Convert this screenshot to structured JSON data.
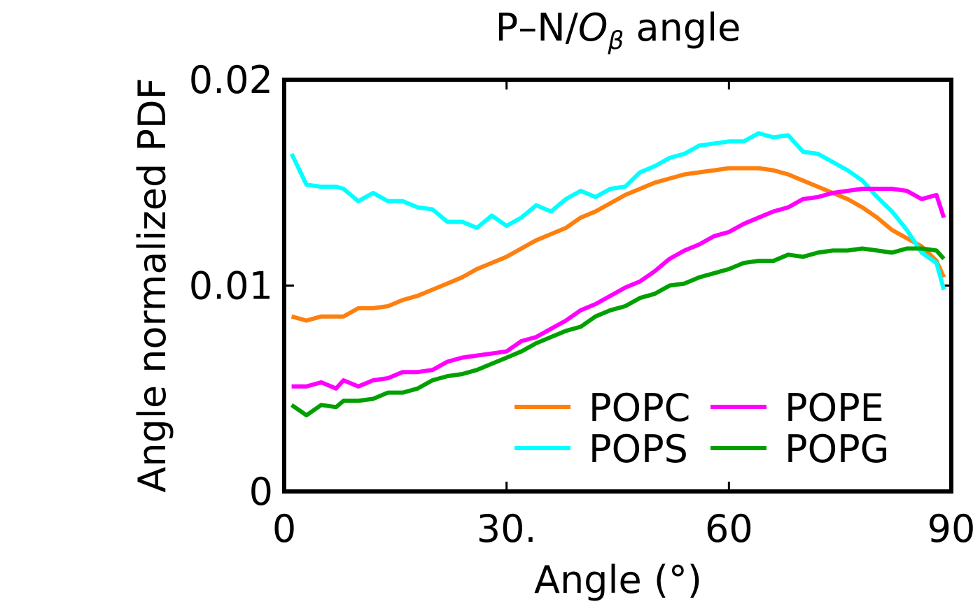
{
  "chart_data": {
    "type": "line",
    "title_main": "P–N/",
    "title_italic": "O",
    "title_sub": "β",
    "title_tail": " angle",
    "xlabel": "Angle (°)",
    "ylabel": "Angle normalized PDF",
    "xlim": [
      0,
      90
    ],
    "ylim": [
      0,
      0.02
    ],
    "xticks": [
      0,
      30,
      60,
      90
    ],
    "xtick_labels": [
      "0",
      "30.",
      "60",
      "90"
    ],
    "yticks": [
      0,
      0.01,
      0.02
    ],
    "ytick_labels": [
      "0",
      "0.01",
      "0.02"
    ],
    "grid": false,
    "legend_position": "lower-right",
    "x": [
      1,
      3,
      5,
      7,
      8,
      10,
      12,
      14,
      16,
      18,
      20,
      22,
      24,
      26,
      28,
      30,
      32,
      34,
      36,
      38,
      40,
      42,
      44,
      46,
      48,
      50,
      52,
      54,
      56,
      58,
      60,
      62,
      64,
      66,
      68,
      70,
      72,
      74,
      76,
      78,
      80,
      82,
      84,
      86,
      88,
      89
    ],
    "series": [
      {
        "name": "POPC",
        "color": "#ff7f0e",
        "values": [
          0.0085,
          0.0083,
          0.0085,
          0.0085,
          0.0085,
          0.0089,
          0.0089,
          0.009,
          0.0093,
          0.0095,
          0.0098,
          0.0101,
          0.0104,
          0.0108,
          0.0111,
          0.0114,
          0.0118,
          0.0122,
          0.0125,
          0.0128,
          0.0133,
          0.0136,
          0.014,
          0.0144,
          0.0147,
          0.015,
          0.0152,
          0.0154,
          0.0155,
          0.0156,
          0.0157,
          0.0157,
          0.0157,
          0.0156,
          0.0154,
          0.0151,
          0.0148,
          0.0145,
          0.0142,
          0.0138,
          0.0133,
          0.0127,
          0.0123,
          0.0119,
          0.0112,
          0.0104
        ]
      },
      {
        "name": "POPS",
        "color": "#00ffff",
        "values": [
          0.0164,
          0.0149,
          0.0148,
          0.0148,
          0.0147,
          0.0141,
          0.0145,
          0.0141,
          0.0141,
          0.0138,
          0.0137,
          0.0131,
          0.0131,
          0.0128,
          0.0134,
          0.0129,
          0.0133,
          0.0139,
          0.0136,
          0.0142,
          0.0146,
          0.0143,
          0.0147,
          0.0148,
          0.0155,
          0.0158,
          0.0162,
          0.0164,
          0.0168,
          0.0169,
          0.017,
          0.017,
          0.0174,
          0.0172,
          0.0173,
          0.0165,
          0.0164,
          0.016,
          0.0156,
          0.0151,
          0.0143,
          0.0136,
          0.0127,
          0.0116,
          0.0111,
          0.0098
        ]
      },
      {
        "name": "POPE",
        "color": "#ff00ff",
        "values": [
          0.0051,
          0.0051,
          0.0053,
          0.005,
          0.0054,
          0.0051,
          0.0054,
          0.0055,
          0.0058,
          0.0058,
          0.0059,
          0.0063,
          0.0065,
          0.0066,
          0.0067,
          0.0068,
          0.0073,
          0.0075,
          0.0079,
          0.0083,
          0.0088,
          0.0091,
          0.0095,
          0.0099,
          0.0102,
          0.0107,
          0.0113,
          0.0117,
          0.012,
          0.0124,
          0.0126,
          0.013,
          0.0133,
          0.0136,
          0.0138,
          0.0142,
          0.0143,
          0.0145,
          0.0146,
          0.0147,
          0.0147,
          0.0147,
          0.0146,
          0.0142,
          0.0144,
          0.0133
        ]
      },
      {
        "name": "POPG",
        "color": "#00a000",
        "values": [
          0.0042,
          0.0037,
          0.0042,
          0.0041,
          0.0044,
          0.0044,
          0.0045,
          0.0048,
          0.0048,
          0.005,
          0.0054,
          0.0056,
          0.0057,
          0.0059,
          0.0062,
          0.0065,
          0.0068,
          0.0072,
          0.0075,
          0.0078,
          0.008,
          0.0085,
          0.0088,
          0.009,
          0.0094,
          0.0096,
          0.01,
          0.0101,
          0.0104,
          0.0106,
          0.0108,
          0.0111,
          0.0112,
          0.0112,
          0.0115,
          0.0114,
          0.0116,
          0.0117,
          0.0117,
          0.0118,
          0.0117,
          0.0116,
          0.0118,
          0.0118,
          0.0117,
          0.0113
        ]
      }
    ]
  }
}
